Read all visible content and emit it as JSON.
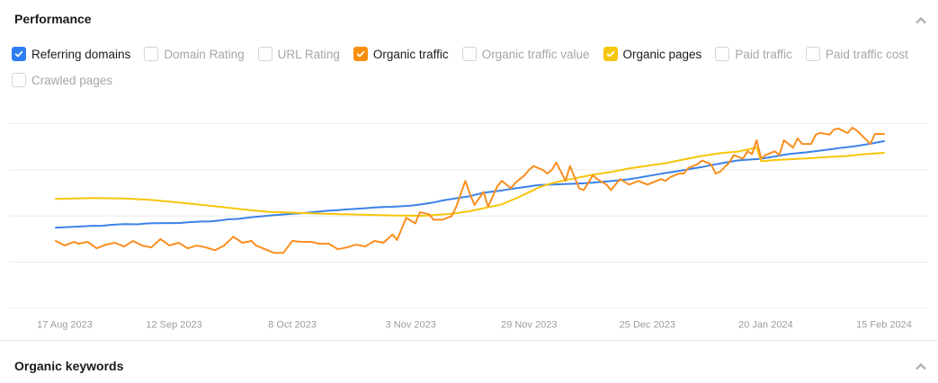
{
  "performance": {
    "title": "Performance"
  },
  "organic_keywords": {
    "title": "Organic keywords"
  },
  "metrics": {
    "items": [
      {
        "label": "Referring domains",
        "checked": true,
        "color": "#2e7df3"
      },
      {
        "label": "Domain Rating",
        "checked": false
      },
      {
        "label": "URL Rating",
        "checked": false
      },
      {
        "label": "Organic traffic",
        "checked": true,
        "color": "#fa8e0f"
      },
      {
        "label": "Organic traffic value",
        "checked": false
      },
      {
        "label": "Organic pages",
        "checked": true,
        "color": "#f6c60b"
      },
      {
        "label": "Paid traffic",
        "checked": false
      },
      {
        "label": "Paid traffic cost",
        "checked": false
      },
      {
        "label": "Crawled pages",
        "checked": false
      }
    ]
  },
  "chart_data": {
    "type": "line",
    "title": "",
    "xlabel": "",
    "ylabel": "",
    "x_labels": [
      "17 Aug 2023",
      "12 Sep 2023",
      "8 Oct 2023",
      "3 Nov 2023",
      "29 Nov 2023",
      "25 Dec 2023",
      "20 Jan 2024",
      "15 Feb 2024"
    ],
    "x_tick_interval_days": 26,
    "x_range_days": [
      0,
      182
    ],
    "ylim": [
      0,
      100
    ],
    "y_axis_labels": "none",
    "grid": "horizontal",
    "legend": "checkbox-toggles-above",
    "gridline_color": "#ececec",
    "label_color": "#9c9c9c",
    "series": [
      {
        "name": "Referring domains",
        "color": "#3b82e9",
        "points": [
          [
            0,
            43.7
          ],
          [
            2,
            43.9
          ],
          [
            4,
            44.2
          ],
          [
            6,
            44.4
          ],
          [
            8,
            44.7
          ],
          [
            10,
            44.6
          ],
          [
            12,
            45.2
          ],
          [
            15,
            45.6
          ],
          [
            18,
            45.5
          ],
          [
            20,
            46.0
          ],
          [
            22,
            46.1
          ],
          [
            25,
            46.2
          ],
          [
            27,
            46.2
          ],
          [
            29,
            46.6
          ],
          [
            32,
            47.0
          ],
          [
            34,
            47.1
          ],
          [
            36,
            47.6
          ],
          [
            38,
            48.2
          ],
          [
            40,
            48.4
          ],
          [
            42,
            49.0
          ],
          [
            44,
            49.6
          ],
          [
            46,
            50.0
          ],
          [
            48,
            50.5
          ],
          [
            50,
            50.8
          ],
          [
            52,
            51.2
          ],
          [
            54,
            51.5
          ],
          [
            56,
            52.0
          ],
          [
            58,
            52.4
          ],
          [
            60,
            52.9
          ],
          [
            62,
            53.2
          ],
          [
            64,
            53.6
          ],
          [
            66,
            53.9
          ],
          [
            68,
            54.2
          ],
          [
            70,
            54.6
          ],
          [
            72,
            54.9
          ],
          [
            74,
            55.0
          ],
          [
            76,
            55.3
          ],
          [
            78,
            55.6
          ],
          [
            80,
            56.2
          ],
          [
            81,
            56.6
          ],
          [
            83,
            57.3
          ],
          [
            85,
            58.4
          ],
          [
            87,
            59.2
          ],
          [
            89,
            60.0
          ],
          [
            91,
            60.7
          ],
          [
            92,
            61.4
          ],
          [
            94,
            62.6
          ],
          [
            96,
            63.2
          ],
          [
            98,
            63.8
          ],
          [
            100,
            64.6
          ],
          [
            102,
            65.3
          ],
          [
            104,
            66.0
          ],
          [
            106,
            66.7
          ],
          [
            108,
            66.9
          ],
          [
            111,
            67.2
          ],
          [
            113,
            67.4
          ],
          [
            116,
            67.7
          ],
          [
            118,
            68.1
          ],
          [
            120,
            68.5
          ],
          [
            122,
            68.9
          ],
          [
            124,
            69.4
          ],
          [
            126,
            69.9
          ],
          [
            128,
            70.7
          ],
          [
            130,
            71.6
          ],
          [
            132,
            72.4
          ],
          [
            134,
            73.3
          ],
          [
            136,
            74.0
          ],
          [
            138,
            74.8
          ],
          [
            140,
            75.7
          ],
          [
            142,
            76.5
          ],
          [
            144,
            77.5
          ],
          [
            146,
            78.4
          ],
          [
            148,
            79.3
          ],
          [
            150,
            80.1
          ],
          [
            152,
            80.5
          ],
          [
            154,
            80.8
          ],
          [
            155,
            81.0
          ],
          [
            157,
            81.8
          ],
          [
            159,
            82.7
          ],
          [
            161,
            83.5
          ],
          [
            163,
            84.0
          ],
          [
            165,
            84.5
          ],
          [
            167,
            85.1
          ],
          [
            169,
            85.7
          ],
          [
            170,
            86.0
          ],
          [
            172,
            86.7
          ],
          [
            174,
            87.3
          ],
          [
            176,
            87.9
          ],
          [
            177,
            88.3
          ],
          [
            179,
            89.1
          ],
          [
            180,
            89.6
          ],
          [
            182,
            90.5
          ]
        ]
      },
      {
        "name": "Organic traffic",
        "color": "#fa8e1f",
        "points": [
          [
            0,
            36.5
          ],
          [
            2,
            34
          ],
          [
            4,
            36
          ],
          [
            5,
            35
          ],
          [
            7,
            36
          ],
          [
            9,
            32.5
          ],
          [
            11,
            34.5
          ],
          [
            13,
            35.5
          ],
          [
            15,
            33.5
          ],
          [
            17,
            36.5
          ],
          [
            19,
            34
          ],
          [
            21,
            33
          ],
          [
            23,
            37.5
          ],
          [
            25,
            34
          ],
          [
            27,
            35.5
          ],
          [
            29,
            32.5
          ],
          [
            31,
            34
          ],
          [
            33,
            33
          ],
          [
            35,
            31.5
          ],
          [
            37,
            34
          ],
          [
            39,
            38.8
          ],
          [
            41,
            35.5
          ],
          [
            43,
            36.5
          ],
          [
            44,
            34
          ],
          [
            46,
            32
          ],
          [
            48,
            30
          ],
          [
            50,
            30
          ],
          [
            52,
            36.5
          ],
          [
            54,
            36
          ],
          [
            56,
            36
          ],
          [
            58,
            35
          ],
          [
            60,
            35
          ],
          [
            62,
            32
          ],
          [
            64,
            33
          ],
          [
            66,
            34.5
          ],
          [
            68,
            33.5
          ],
          [
            70,
            36.5
          ],
          [
            72,
            35.5
          ],
          [
            74,
            40
          ],
          [
            75,
            37
          ],
          [
            77,
            49
          ],
          [
            79,
            46
          ],
          [
            80,
            52
          ],
          [
            82,
            51
          ],
          [
            83,
            48
          ],
          [
            85,
            48
          ],
          [
            87,
            50
          ],
          [
            88,
            55
          ],
          [
            90,
            69
          ],
          [
            91,
            62
          ],
          [
            92,
            56
          ],
          [
            94,
            63
          ],
          [
            95,
            55
          ],
          [
            97,
            66
          ],
          [
            98,
            69
          ],
          [
            100,
            65
          ],
          [
            101,
            68
          ],
          [
            103,
            72
          ],
          [
            104,
            75
          ],
          [
            105,
            77
          ],
          [
            107,
            75
          ],
          [
            108,
            73
          ],
          [
            109,
            75
          ],
          [
            110,
            79
          ],
          [
            111,
            74
          ],
          [
            112,
            69
          ],
          [
            113,
            77
          ],
          [
            115,
            65
          ],
          [
            116,
            64
          ],
          [
            117,
            68
          ],
          [
            118,
            72
          ],
          [
            119,
            70
          ],
          [
            121,
            67
          ],
          [
            122,
            64
          ],
          [
            123,
            67
          ],
          [
            124,
            70
          ],
          [
            126,
            67
          ],
          [
            127,
            68
          ],
          [
            128,
            69
          ],
          [
            130,
            67
          ],
          [
            131,
            68
          ],
          [
            133,
            70
          ],
          [
            134,
            69
          ],
          [
            135,
            71
          ],
          [
            137,
            73
          ],
          [
            138,
            73
          ],
          [
            139,
            76
          ],
          [
            141,
            78
          ],
          [
            142,
            80
          ],
          [
            144,
            78
          ],
          [
            145,
            73
          ],
          [
            146,
            74
          ],
          [
            148,
            79
          ],
          [
            149,
            83
          ],
          [
            151,
            81
          ],
          [
            152,
            85
          ],
          [
            153,
            83.5
          ],
          [
            154,
            91
          ],
          [
            155,
            81
          ],
          [
            156,
            83
          ],
          [
            158,
            85
          ],
          [
            159,
            83
          ],
          [
            160,
            91
          ],
          [
            162,
            87
          ],
          [
            163,
            92
          ],
          [
            164,
            89
          ],
          [
            166,
            89
          ],
          [
            167,
            94
          ],
          [
            168,
            95
          ],
          [
            170,
            94
          ],
          [
            171,
            96.8
          ],
          [
            172,
            97.3
          ],
          [
            174,
            94.9
          ],
          [
            175,
            97.8
          ],
          [
            176,
            96.3
          ],
          [
            178,
            91.4
          ],
          [
            179,
            89
          ],
          [
            180,
            94.4
          ],
          [
            181,
            94.4
          ],
          [
            182,
            94.4
          ]
        ]
      },
      {
        "name": "Organic pages",
        "color": "#f7c50c",
        "points": [
          [
            0,
            59.2
          ],
          [
            8,
            59.7
          ],
          [
            15,
            59.5
          ],
          [
            21,
            58.7
          ],
          [
            27,
            57.3
          ],
          [
            35,
            55.3
          ],
          [
            41,
            53.6
          ],
          [
            47,
            52.2
          ],
          [
            53,
            51.7
          ],
          [
            59,
            51.2
          ],
          [
            67,
            50.7
          ],
          [
            75,
            50.2
          ],
          [
            81,
            50.1
          ],
          [
            87,
            51.2
          ],
          [
            91,
            52.6
          ],
          [
            94,
            54.2
          ],
          [
            98,
            56.3
          ],
          [
            102,
            60.5
          ],
          [
            106,
            65.3
          ],
          [
            108,
            67.0
          ],
          [
            110,
            68.3
          ],
          [
            114,
            70.4
          ],
          [
            118,
            72.3
          ],
          [
            122,
            73.8
          ],
          [
            126,
            75.7
          ],
          [
            130,
            77.2
          ],
          [
            134,
            78.6
          ],
          [
            138,
            80.6
          ],
          [
            142,
            82.5
          ],
          [
            146,
            84.0
          ],
          [
            150,
            84.9
          ],
          [
            154,
            87.0
          ],
          [
            155,
            79.6
          ],
          [
            158,
            80.3
          ],
          [
            162,
            80.8
          ],
          [
            166,
            81.3
          ],
          [
            170,
            82.0
          ],
          [
            174,
            82.5
          ],
          [
            177,
            83.3
          ],
          [
            182,
            84.2
          ]
        ]
      }
    ]
  }
}
